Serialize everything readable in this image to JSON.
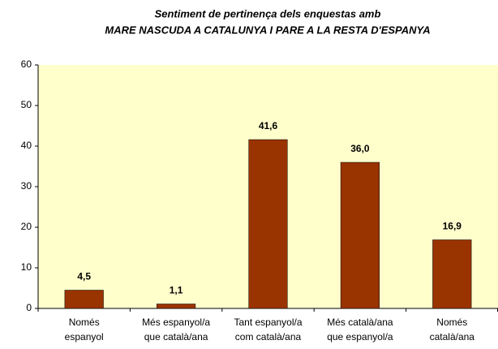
{
  "chart_data": {
    "type": "bar",
    "title": "Sentiment de pertinença dels enquestas amb",
    "subtitle": "MARE NASCUDA A CATALUNYA I PARE A LA RESTA D'ESPANYA",
    "categories": [
      [
        "Només",
        "espanyol"
      ],
      [
        "Més espanyol/a",
        "que català/ana"
      ],
      [
        "Tant espanyol/a",
        "com català/ana"
      ],
      [
        "Més català/ana",
        "que espanyol/a"
      ],
      [
        "Només",
        "català/ana"
      ]
    ],
    "values": [
      4.5,
      1.1,
      41.6,
      36.0,
      16.9
    ],
    "value_labels": [
      "4,5",
      "1,1",
      "41,6",
      "36,0",
      "16,9"
    ],
    "color": "#993300",
    "ylim": [
      0,
      60
    ],
    "yticks": [
      0,
      10,
      20,
      30,
      40,
      50,
      60
    ],
    "grid": false
  }
}
